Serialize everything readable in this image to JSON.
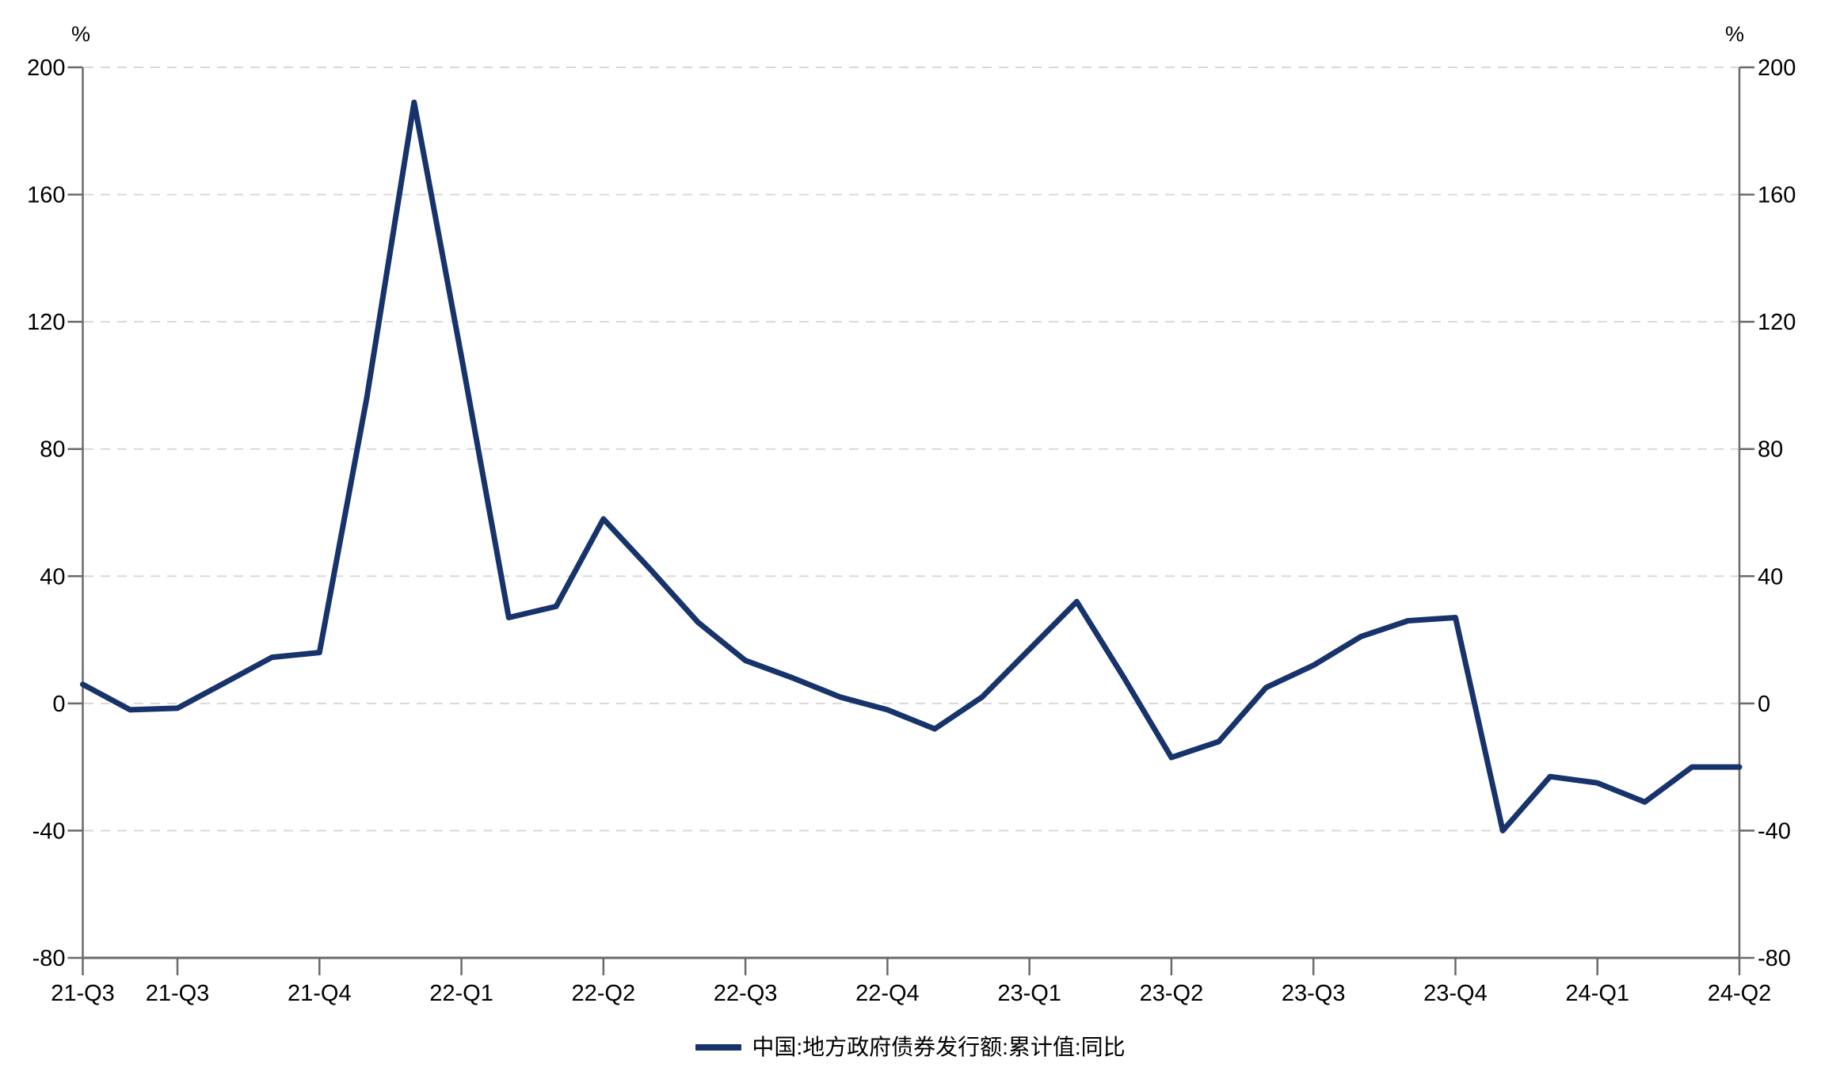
{
  "chart": {
    "y_unit_left": "%",
    "y_unit_right": "%",
    "colors": {
      "line": "#17336b",
      "axis": "#6a6a6a",
      "grid": "#d9d9d9",
      "text": "#000000",
      "background": "#ffffff"
    }
  },
  "chart_data": {
    "type": "line",
    "title": "",
    "x": [
      "2021-07",
      "2021-08",
      "2021-09",
      "2021-10",
      "2021-11",
      "2021-12",
      "2022-01",
      "2022-02",
      "2022-03",
      "2022-04",
      "2022-05",
      "2022-06",
      "2022-07",
      "2022-08",
      "2022-09",
      "2022-10",
      "2022-11",
      "2022-12",
      "2023-01",
      "2023-02",
      "2023-03",
      "2023-04",
      "2023-05",
      "2023-06",
      "2023-07",
      "2023-08",
      "2023-09",
      "2023-10",
      "2023-11",
      "2023-12",
      "2024-01",
      "2024-02",
      "2024-03",
      "2024-04",
      "2024-05",
      "2024-06"
    ],
    "series": [
      {
        "name": "中国:地方政府债券发行额:累计值:同比",
        "color": "#17336b",
        "values": [
          6,
          -2,
          -1.5,
          6.5,
          14.5,
          16,
          96,
          189,
          109,
          27,
          30.5,
          58,
          42,
          25.5,
          13.5,
          8,
          2,
          -2,
          -8,
          2,
          17,
          32,
          8,
          -17,
          -12,
          5,
          12,
          21,
          26,
          27,
          -40,
          -23,
          -25,
          -31,
          -20,
          -20
        ]
      }
    ],
    "x_tick_labels": [
      "21-Q3",
      "21-Q3",
      "21-Q4",
      "22-Q1",
      "22-Q2",
      "22-Q3",
      "22-Q4",
      "23-Q1",
      "23-Q2",
      "23-Q3",
      "23-Q4",
      "24-Q1",
      "24-Q2"
    ],
    "x_tick_positions": [
      0,
      2,
      5,
      8,
      11,
      14,
      17,
      20,
      23,
      26,
      29,
      32,
      35
    ],
    "y_ticks": [
      -80,
      -40,
      0,
      40,
      80,
      120,
      160,
      200
    ],
    "ylim": [
      -80,
      200
    ],
    "ylabel": "%",
    "xlabel": "",
    "grid": "horizontal-dashed",
    "legend_position": "bottom-center"
  }
}
